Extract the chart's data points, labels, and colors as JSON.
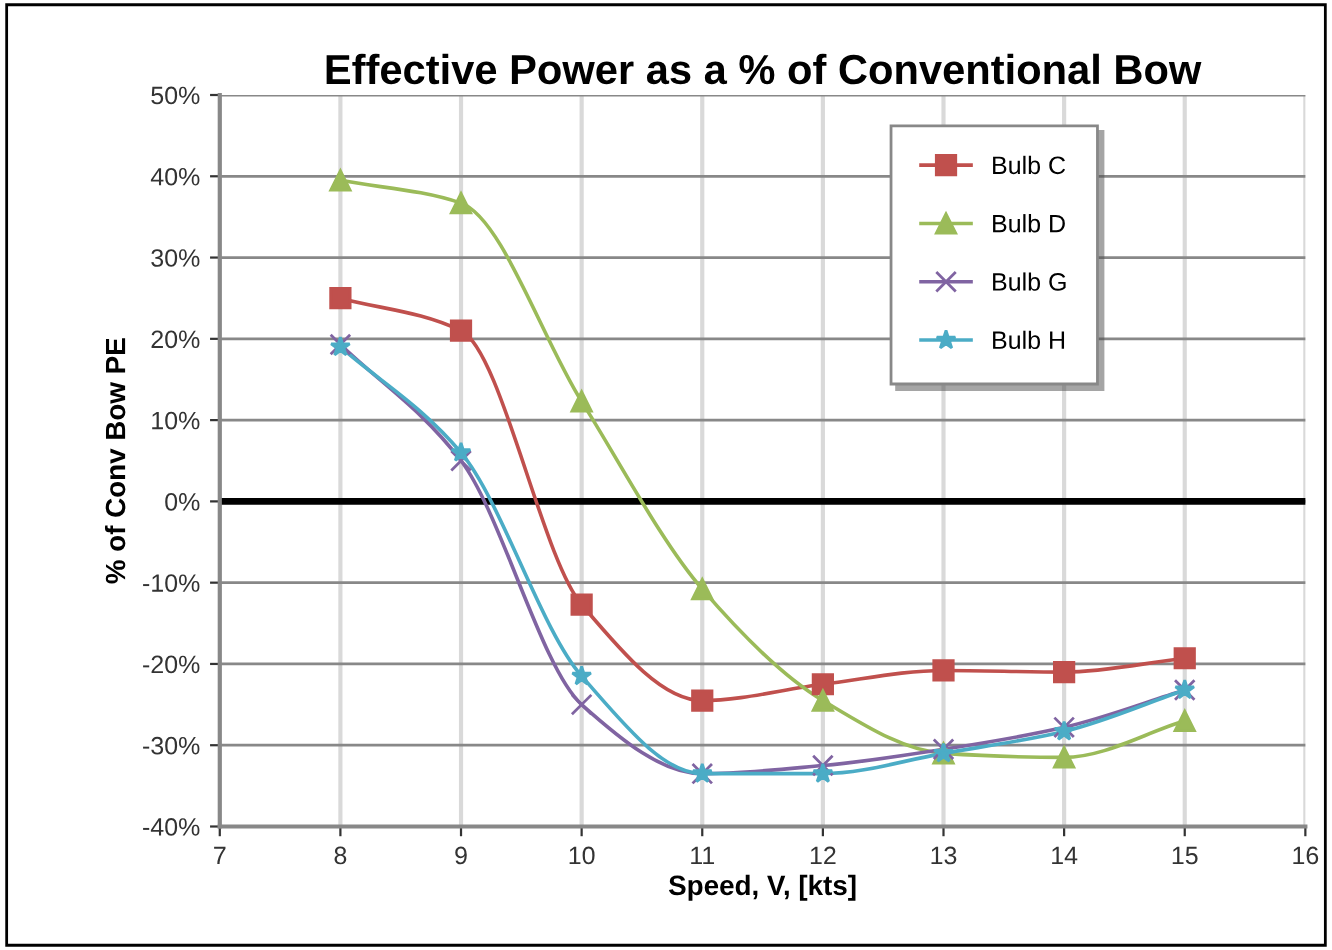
{
  "chart_data": {
    "type": "line",
    "title": "Effective Power as a % of Conventional Bow",
    "xlabel": "Speed, V, [kts]",
    "ylabel": "% of Conv Bow PE",
    "x": [
      8,
      9,
      10,
      11,
      12,
      13,
      14,
      15
    ],
    "series": [
      {
        "name": "Bulb C",
        "color": "#c0504d",
        "marker": "square",
        "values": [
          25,
          21,
          -12.7,
          -24.5,
          -22.5,
          -20.8,
          -21,
          -19.3
        ]
      },
      {
        "name": "Bulb D",
        "color": "#9bbb59",
        "marker": "triangle",
        "values": [
          39.5,
          36.7,
          12.3,
          -10.8,
          -24.5,
          -31,
          -31.5,
          -27
        ]
      },
      {
        "name": "Bulb G",
        "color": "#8064a2",
        "marker": "cross",
        "values": [
          19.3,
          5,
          -25,
          -33.5,
          -32.5,
          -30.5,
          -27.8,
          -23.2
        ]
      },
      {
        "name": "Bulb H",
        "color": "#4bacc6",
        "marker": "star",
        "values": [
          19,
          6,
          -21.5,
          -33.5,
          -33.5,
          -31,
          -28.3,
          -23.2
        ]
      }
    ],
    "xlim": [
      7,
      16
    ],
    "xticks": [
      7,
      8,
      9,
      10,
      11,
      12,
      13,
      14,
      15,
      16
    ],
    "ylim": [
      -40,
      50
    ],
    "yticks": [
      {
        "value": -40,
        "label": "-40%"
      },
      {
        "value": -30,
        "label": "-30%"
      },
      {
        "value": -20,
        "label": "-20%"
      },
      {
        "value": -10,
        "label": "-10%"
      },
      {
        "value": 0,
        "label": "0%"
      },
      {
        "value": 10,
        "label": "10%"
      },
      {
        "value": 20,
        "label": "20%"
      },
      {
        "value": 30,
        "label": "30%"
      },
      {
        "value": 40,
        "label": "40%"
      },
      {
        "value": 50,
        "label": "50%"
      }
    ],
    "ref_lines": [
      {
        "axis": "y",
        "value": 0,
        "color": "#000000"
      }
    ],
    "grid": true,
    "legend": "top right"
  }
}
